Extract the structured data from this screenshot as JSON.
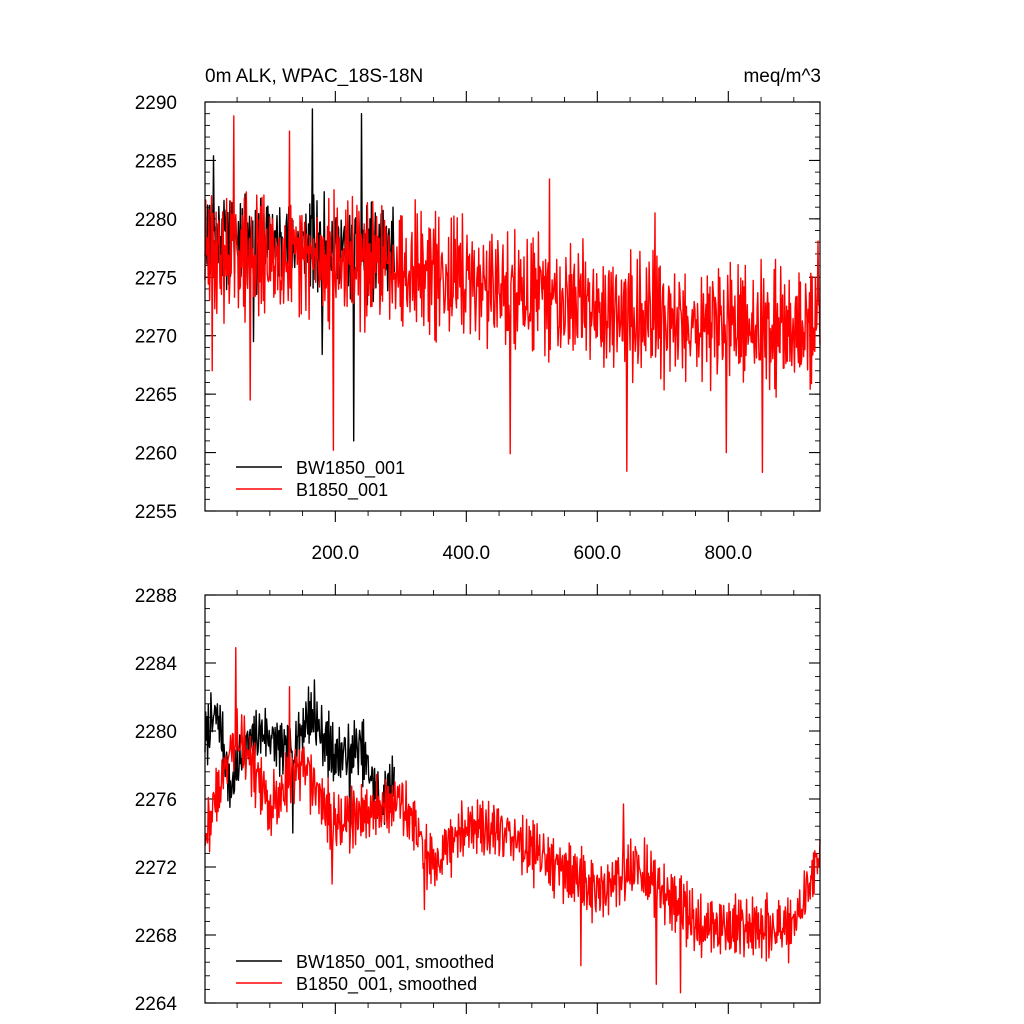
{
  "chart_data": [
    {
      "type": "line",
      "title": "0m ALK, WPAC_18S-18N",
      "units": "meq/m^3",
      "xlim": [
        1,
        940
      ],
      "ylim": [
        2255,
        2290
      ],
      "yticks": [
        "2255",
        "2260",
        "2265",
        "2270",
        "2275",
        "2280",
        "2285",
        "2290"
      ],
      "xticks": [
        "200.0",
        "400.0",
        "600.0",
        "800.0"
      ],
      "legend": [
        "BW1850_001",
        "B1850_001"
      ],
      "series": [
        {
          "name": "BW1850_001",
          "color": "#000000",
          "x_start": 1,
          "x_end": 290,
          "mean_trend": [
            [
              1,
              2278.5
            ],
            [
              100,
              2278.0
            ],
            [
              200,
              2277.5
            ],
            [
              290,
              2277.0
            ]
          ],
          "noise": 6,
          "seed": 11,
          "extremes": [
            [
              165,
              2289.4
            ],
            [
              240,
              2289.0
            ],
            [
              228,
              2261.0
            ],
            [
              75,
              2269.5
            ],
            [
              180,
              2268.4
            ],
            [
              14,
              2285.4
            ]
          ]
        },
        {
          "name": "B1850_001",
          "color": "#ff0000",
          "x_start": 1,
          "x_end": 940,
          "mean_trend": [
            [
              1,
              2277.0
            ],
            [
              150,
              2276.5
            ],
            [
              300,
              2276.0
            ],
            [
              450,
              2274.0
            ],
            [
              600,
              2272.5
            ],
            [
              750,
              2271.0
            ],
            [
              940,
              2270.5
            ]
          ],
          "noise": 8,
          "seed": 29,
          "extremes": [
            [
              45,
              2288.8
            ],
            [
              130,
              2287.5
            ],
            [
              197,
              2260.2
            ],
            [
              70,
              2264.5
            ],
            [
              467,
              2259.9
            ],
            [
              527,
              2283.4
            ],
            [
              645,
              2258.4
            ],
            [
              852,
              2258.3
            ],
            [
              688,
              2280.5
            ],
            [
              797,
              2260.0
            ],
            [
              937,
              2278.1
            ],
            [
              12,
              2267.0
            ]
          ]
        }
      ]
    },
    {
      "type": "line",
      "title": "",
      "xlim": [
        1,
        940
      ],
      "ylim": [
        2264,
        2288
      ],
      "yticks": [
        "2264",
        "2268",
        "2272",
        "2276",
        "2280",
        "2284",
        "2288"
      ],
      "xticks": [],
      "legend": [
        "BW1850_001, smoothed",
        "B1850_001, smoothed"
      ],
      "series": [
        {
          "name": "BW1850_001, smoothed",
          "color": "#000000",
          "x_start": 1,
          "x_end": 290,
          "mean_trend": [
            [
              1,
              2279.5
            ],
            [
              20,
              2281.2
            ],
            [
              40,
              2276.5
            ],
            [
              60,
              2279.0
            ],
            [
              90,
              2280.0
            ],
            [
              130,
              2278.5
            ],
            [
              160,
              2281.0
            ],
            [
              200,
              2278.5
            ],
            [
              240,
              2279.0
            ],
            [
              270,
              2275.5
            ],
            [
              290,
              2277.5
            ]
          ],
          "noise": 2.6,
          "seed": 7,
          "extremes": [
            [
              168,
              2283.0
            ],
            [
              20,
              2281.6
            ],
            [
              135,
              2282.5
            ],
            [
              222,
              2273.6
            ],
            [
              135,
              2274.0
            ]
          ]
        },
        {
          "name": "B1850_001, smoothed",
          "color": "#ff0000",
          "x_start": 1,
          "x_end": 940,
          "mean_trend": [
            [
              1,
              2274.0
            ],
            [
              50,
              2280.0
            ],
            [
              100,
              2275.5
            ],
            [
              150,
              2278.0
            ],
            [
              200,
              2274.5
            ],
            [
              300,
              2276.0
            ],
            [
              350,
              2272.0
            ],
            [
              400,
              2274.5
            ],
            [
              450,
              2274.0
            ],
            [
              500,
              2273.0
            ],
            [
              560,
              2271.5
            ],
            [
              600,
              2270.5
            ],
            [
              660,
              2272.0
            ],
            [
              700,
              2270.5
            ],
            [
              760,
              2268.5
            ],
            [
              820,
              2268.5
            ],
            [
              900,
              2268.5
            ],
            [
              940,
              2272.5
            ]
          ],
          "noise": 2.8,
          "seed": 43,
          "extremes": [
            [
              48,
              2284.9
            ],
            [
              130,
              2282.6
            ],
            [
              195,
              2271.0
            ],
            [
              336,
              2269.5
            ],
            [
              640,
              2275.7
            ],
            [
              727,
              2264.6
            ],
            [
              690,
              2265.1
            ],
            [
              575,
              2266.2
            ],
            [
              937,
              2272.5
            ]
          ]
        }
      ]
    }
  ]
}
